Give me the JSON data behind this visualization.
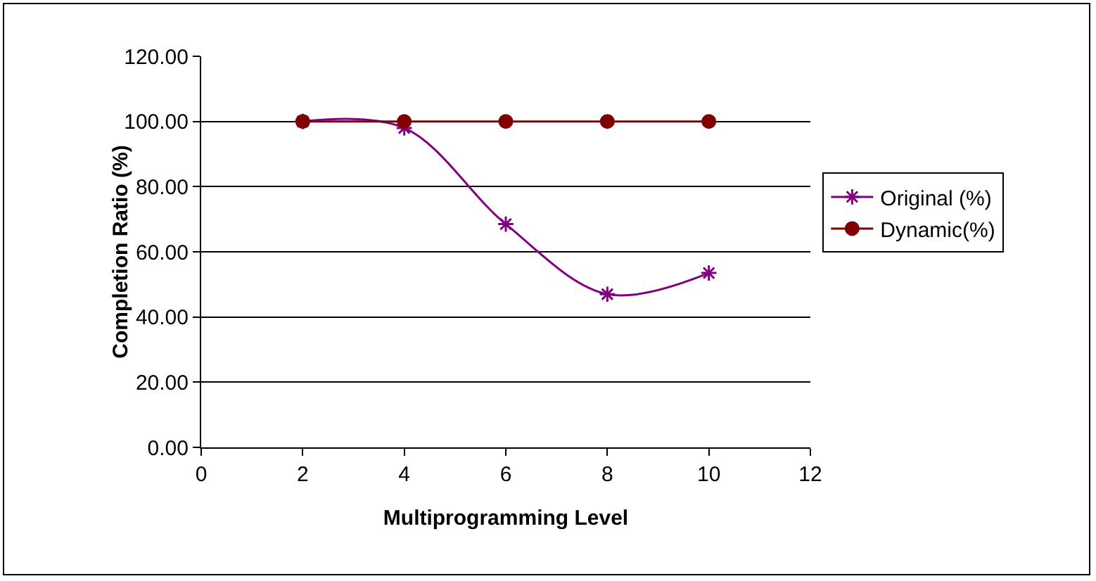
{
  "chart_data": {
    "type": "line",
    "xlabel": "Multiprogramming Level",
    "ylabel": "Completion Ratio (%)",
    "x": [
      2,
      4,
      6,
      8,
      10
    ],
    "series": [
      {
        "name": "Original (%)",
        "color": "#800080",
        "values": [
          100,
          98,
          68.5,
          47,
          53.5
        ],
        "marker": "cross"
      },
      {
        "name": "Dynamic(%)",
        "color": "#800000",
        "values": [
          100,
          100,
          100,
          100,
          100
        ],
        "marker": "circle"
      }
    ],
    "xlim": [
      0,
      12
    ],
    "xticks": [
      0,
      2,
      4,
      6,
      8,
      10,
      12
    ],
    "ylim": [
      0,
      120
    ],
    "yticks": [
      {
        "value": 0,
        "label": "0.00"
      },
      {
        "value": 20,
        "label": "20.00"
      },
      {
        "value": 40,
        "label": "40.00"
      },
      {
        "value": 60,
        "label": "60.00"
      },
      {
        "value": 80,
        "label": "80.00"
      },
      {
        "value": 100,
        "label": "100.00"
      },
      {
        "value": 120,
        "label": "120.00"
      }
    ],
    "grid": "y",
    "legend": "right",
    "line_style": "solid"
  }
}
